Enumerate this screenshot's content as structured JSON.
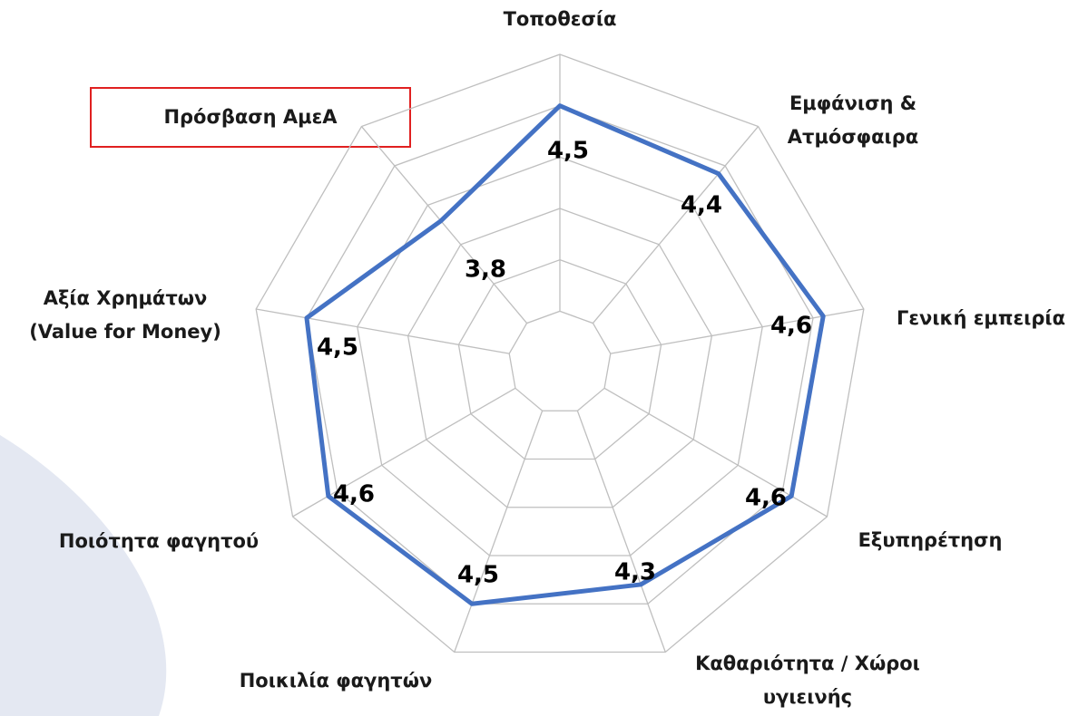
{
  "chart_data": {
    "type": "radar",
    "categories": [
      [
        "Τοποθεσία"
      ],
      [
        "Εμφάνιση &",
        "Ατμόσφαιρα"
      ],
      [
        "Γενική εμπειρία"
      ],
      [
        "Εξυπηρέτηση"
      ],
      [
        "Καθαριότητα / Χώροι",
        "υγιεινής"
      ],
      [
        "Ποικιλία φαγητών"
      ],
      [
        "Ποιότητα φαγητού"
      ],
      [
        "Αξία Χρημάτων",
        "(Value for Money)"
      ],
      [
        "Πρόσβαση ΑμεΑ"
      ]
    ],
    "values": [
      4.5,
      4.4,
      4.6,
      4.6,
      4.3,
      4.5,
      4.6,
      4.5,
      3.8
    ],
    "value_labels": [
      "4,5",
      "4,4",
      "4,6",
      "4,6",
      "4,3",
      "4,5",
      "4,6",
      "4,5",
      "3,8"
    ],
    "color": "#4472c4",
    "rlim": [
      2,
      5
    ],
    "rticks": [
      2.5,
      3,
      3.5,
      4,
      4.5,
      5
    ],
    "grid": true
  }
}
